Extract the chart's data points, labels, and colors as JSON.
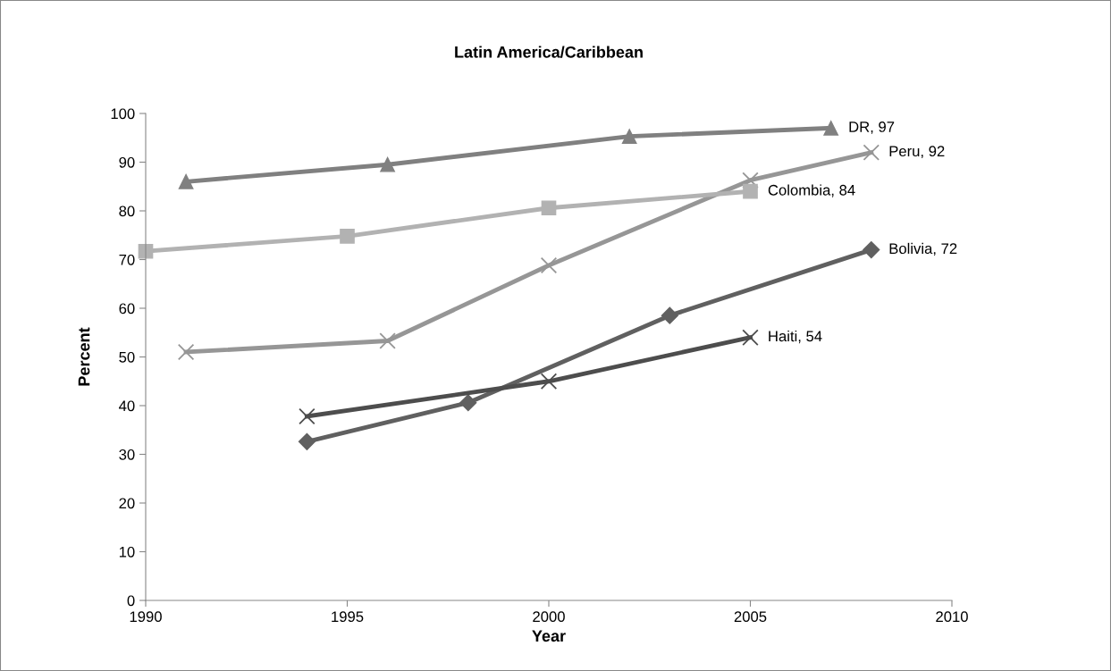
{
  "chart_data": {
    "type": "line",
    "title": "Latin America/Caribbean",
    "xlabel": "Year",
    "ylabel": "Percent",
    "xlim": [
      1990,
      2010
    ],
    "xticks": [
      1990,
      1995,
      2000,
      2005,
      2010
    ],
    "ylim": [
      0,
      100
    ],
    "yticks": [
      0,
      10,
      20,
      30,
      40,
      50,
      60,
      70,
      80,
      90,
      100
    ],
    "grid": false,
    "legend": false,
    "series": [
      {
        "color": "#808080",
        "marker": "triangle",
        "x": [
          1991,
          1996,
          2002,
          2007
        ],
        "values": [
          86,
          89.5,
          95.3,
          97
        ]
      },
      {
        "color": "#969696",
        "marker": "cross",
        "x": [
          1991,
          1996,
          2000,
          2005,
          2008
        ],
        "values": [
          51,
          53.3,
          68.8,
          86.3,
          92
        ]
      },
      {
        "color": "#b2b2b2",
        "marker": "square",
        "x": [
          1990,
          1995,
          2000,
          2005
        ],
        "values": [
          71.7,
          74.8,
          80.6,
          84
        ]
      },
      {
        "color": "#606060",
        "marker": "diamond",
        "x": [
          1994,
          1998,
          2003,
          2008
        ],
        "values": [
          32.6,
          40.6,
          58.5,
          72
        ]
      },
      {
        "color": "#4d4d4d",
        "marker": "cross",
        "x": [
          1994,
          2000,
          2005
        ],
        "values": [
          37.8,
          45,
          54
        ]
      }
    ],
    "annotations": [
      {
        "text": "DR, 97",
        "x": 2007,
        "y": 97
      },
      {
        "text": "Peru, 92",
        "x": 2008,
        "y": 92
      },
      {
        "text": "Colombia, 84",
        "x": 2005,
        "y": 84
      },
      {
        "text": "Bolivia, 72",
        "x": 2008,
        "y": 72
      },
      {
        "text": "Haiti, 54",
        "x": 2005,
        "y": 54
      }
    ]
  }
}
